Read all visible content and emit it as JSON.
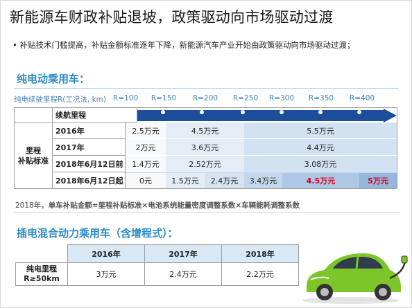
{
  "title": "新能源车财政补贴退坡，政策驱动向市场驱动过渡",
  "bullet": "补贴技术门槛提高，补贴金额标准逐年下降，新能源汽车产业开始由政策驱动向市场驱动过渡；",
  "bev": {
    "heading": "纯电动乘用车：",
    "range_label": "纯电续驶里程R(工况法, km)",
    "r_marks": [
      "R=100",
      "R=150",
      "R=200",
      "R=250",
      "R=300",
      "R=350",
      "R=400"
    ],
    "header_row": "续航里程",
    "group_label_line1": "里程",
    "group_label_line2": "补贴标准",
    "rows": [
      {
        "label": "2016年",
        "cells": [
          "2.5万元",
          "4.5万元",
          "5.5万元"
        ]
      },
      {
        "label": "2017年",
        "cells": [
          "2万元",
          "3.6万元",
          "4.4万元"
        ]
      },
      {
        "label": "2018年6月12日前",
        "cells": [
          "1.4万元",
          "2.52万元",
          "3.08万元"
        ]
      },
      {
        "label": "2018年6月12日起",
        "cells": [
          "0元",
          "1.5万元",
          "2.4万元",
          "3.4万元",
          "4.5万元",
          "5万元"
        ]
      }
    ],
    "formula_prefix": "2018年，",
    "formula_bold": "单车补贴金额=里程补贴标准×电池系统能量密度调整系数×车辆能耗调整系数"
  },
  "phev": {
    "heading": "插电混合动力乘用车（含增程式）：",
    "years": [
      "2016年",
      "2017年",
      "2018年"
    ],
    "row_label_line1": "纯电里程",
    "row_label_line2": "R≥50km",
    "values": [
      "3万元",
      "2.4万元",
      "2.2万元"
    ]
  },
  "colors": {
    "accent": "#2a8bc4",
    "arrow": "#1b4f9c",
    "highlight_red": "#d9001b"
  }
}
